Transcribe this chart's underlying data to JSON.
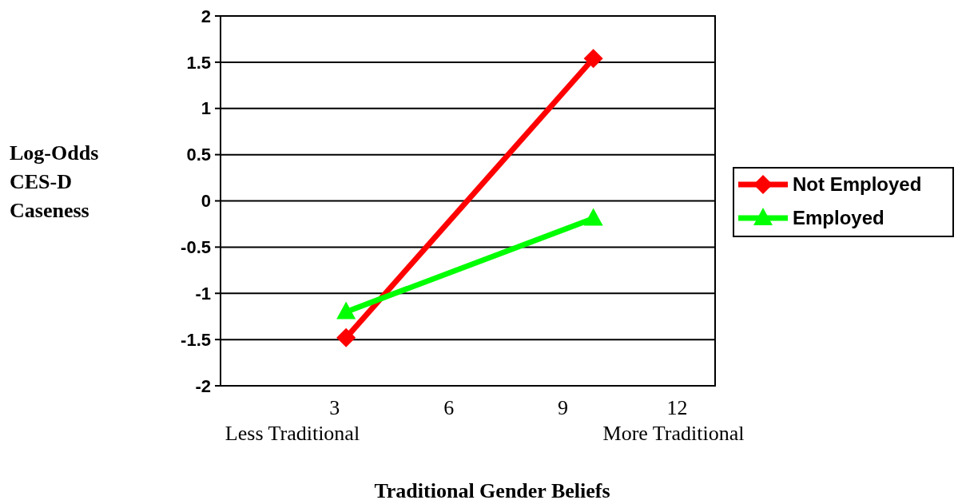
{
  "chart_data": {
    "type": "line",
    "xlabel": "Traditional Gender Beliefs",
    "ylabel": "Log-Odds CES-D Caseness",
    "x": [
      3.3,
      9.8
    ],
    "series": [
      {
        "name": "Not Employed",
        "color": "#ff0000",
        "values": [
          -1.48,
          1.54
        ],
        "marker": "diamond"
      },
      {
        "name": "Employed",
        "color": "#00ff00",
        "values": [
          -1.2,
          -0.19
        ],
        "marker": "triangle"
      }
    ],
    "xlim": [
      0,
      13
    ],
    "xticks": [
      3,
      6,
      9,
      12
    ],
    "ylim": [
      -2,
      2
    ],
    "yticks": [
      -2,
      -1.5,
      -1,
      -0.5,
      0,
      0.5,
      1,
      1.5,
      2
    ],
    "grid": "y",
    "legend": "right",
    "annotations": [
      "Less Traditional",
      "More Traditional"
    ]
  }
}
